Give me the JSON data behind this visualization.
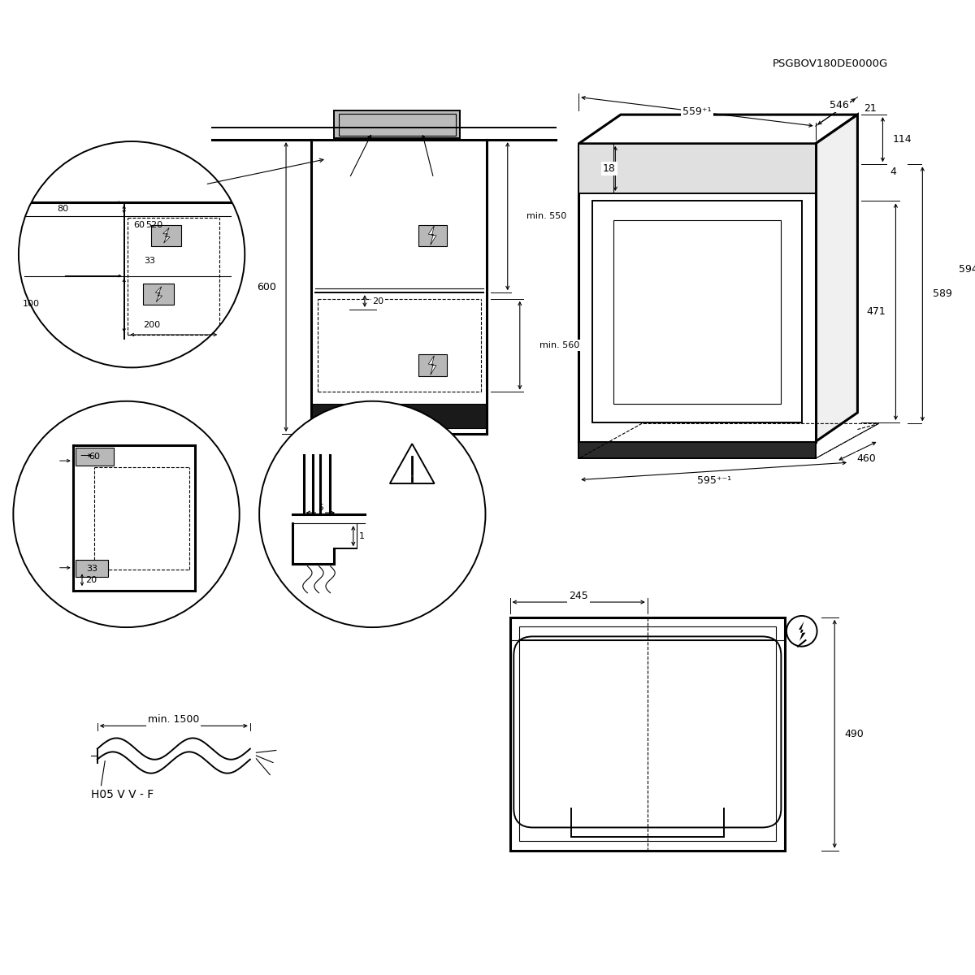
{
  "bg_color": "#ffffff",
  "line_color": "#000000",
  "gray_color": "#b8b8b8",
  "product_code": "PSGBOV180DE0000G",
  "d_559": "559⁺¹",
  "d_546": "546",
  "d_21": "21",
  "d_18": "18",
  "d_114": "114",
  "d_4": "4",
  "d_589": "589",
  "d_471": "471",
  "d_594": "594",
  "d_595": "595⁺⁻¹",
  "d_460": "460",
  "d_min550": "min. 550",
  "d_20": "20",
  "d_min560": "min. 560",
  "d_600": "600",
  "d_80": "80",
  "d_60c1": "60",
  "d_520": "520",
  "d_33c1": "33",
  "d_100": "100",
  "d_200": "200",
  "d_60c2": "60",
  "d_33c2": "33",
  "d_20c2": "20",
  "d_5": "5",
  "d_1": "1",
  "d_245": "245",
  "d_490": "490",
  "d_min1500": "min. 1500",
  "d_cable": "H05 V V - F"
}
